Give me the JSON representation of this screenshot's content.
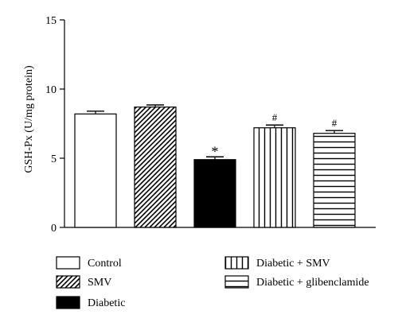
{
  "chart_data": {
    "type": "bar",
    "title": "",
    "xlabel": "",
    "ylabel": "GSH-Px (U/mg protein)",
    "ylim": [
      0,
      15
    ],
    "yticks": [
      0,
      5,
      10,
      15
    ],
    "grid": false,
    "legend_position": "bottom",
    "categories": [
      "Control",
      "SMV",
      "Diabetic",
      "Diabetic + SMV",
      "Diabetic + glibenclamide"
    ],
    "values": [
      8.2,
      8.7,
      4.9,
      7.2,
      6.8
    ],
    "errors": [
      0.2,
      0.15,
      0.2,
      0.2,
      0.2
    ],
    "annotations": [
      "",
      "",
      "*",
      "#",
      "#"
    ],
    "patterns": [
      "none",
      "diagonal",
      "solid",
      "vertical",
      "horizontal"
    ]
  }
}
